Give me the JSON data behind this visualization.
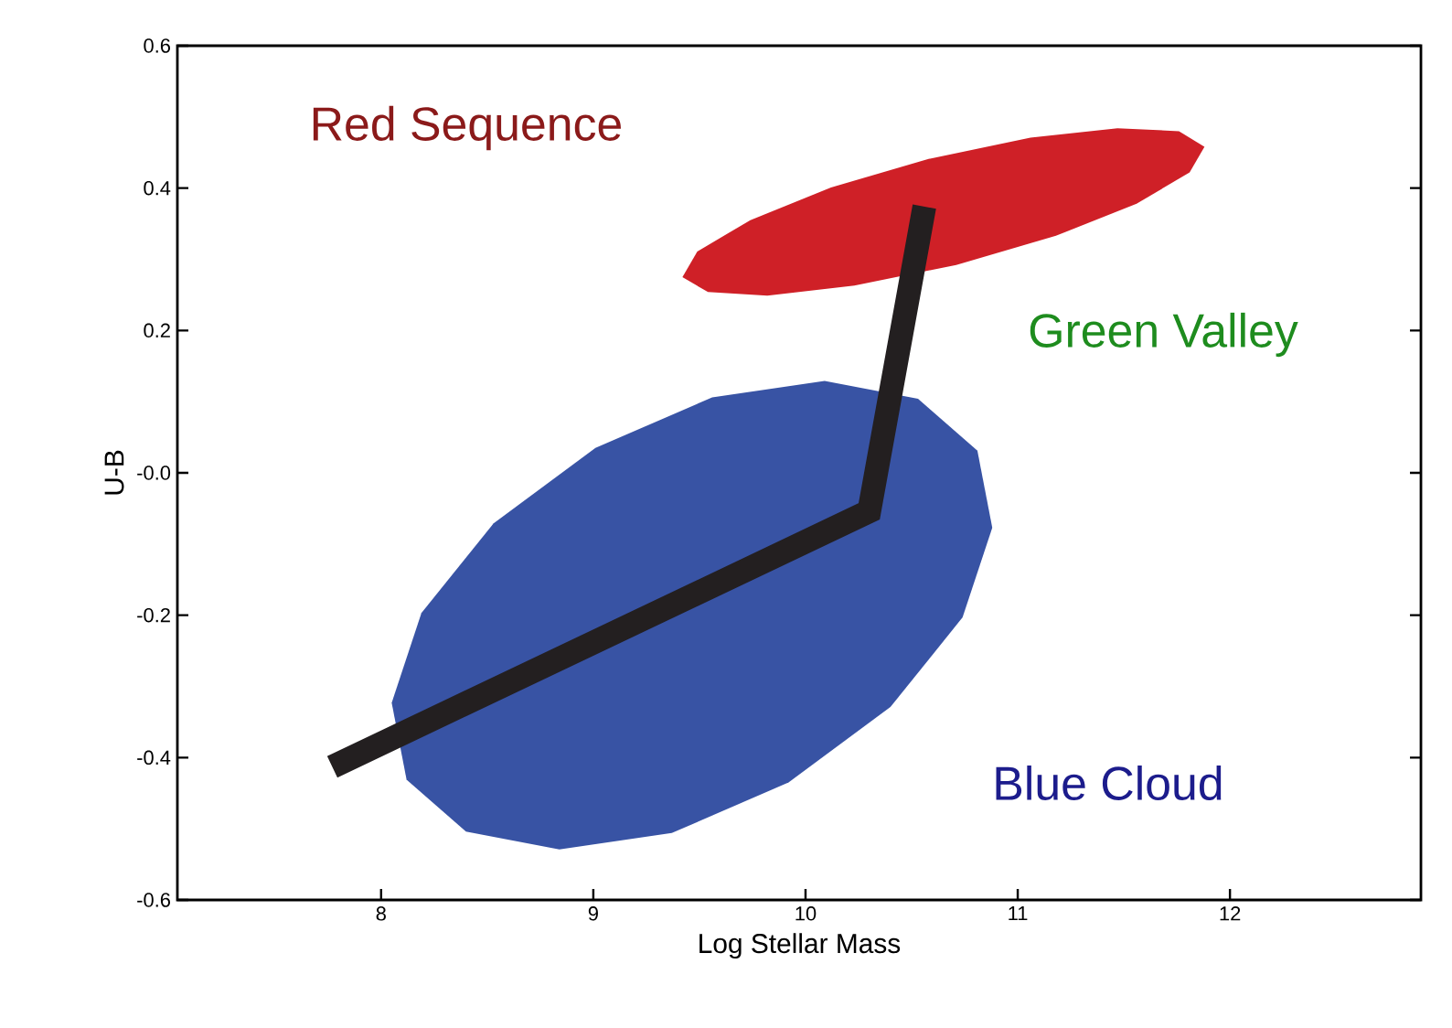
{
  "chart_data": {
    "type": "area",
    "xlabel": "Log Stellar Mass",
    "ylabel": "U-B",
    "xlim": [
      7.04,
      12.9
    ],
    "ylim": [
      -0.6,
      0.6
    ],
    "xticks": [
      8,
      9,
      10,
      11,
      12
    ],
    "yticks": [
      {
        "value": -0.6,
        "label": "-0.6"
      },
      {
        "value": -0.4,
        "label": "-0.4"
      },
      {
        "value": -0.2,
        "label": "-0.2"
      },
      {
        "value": 0,
        "label": "-0.0"
      },
      {
        "value": 0.2,
        "label": "0.2"
      },
      {
        "value": 0.4,
        "label": "0.4"
      },
      {
        "value": 0.6,
        "label": "0.6"
      }
    ],
    "series": [
      {
        "color": "#3853a4",
        "x": [
          10.81,
          10.88,
          10.74,
          10.4,
          9.92,
          9.37,
          8.84,
          8.4,
          8.12,
          8.05,
          8.19,
          8.53,
          9.01,
          9.56,
          10.09,
          10.53
        ],
        "values": [
          0.031,
          -0.077,
          -0.203,
          -0.329,
          -0.435,
          -0.506,
          -0.529,
          -0.504,
          -0.431,
          -0.323,
          -0.197,
          -0.071,
          0.035,
          0.106,
          0.129,
          0.104
        ]
      },
      {
        "color": "#cf2027",
        "x": [
          11.88,
          11.81,
          11.56,
          11.18,
          10.71,
          10.23,
          9.82,
          9.54,
          9.42,
          9.49,
          9.74,
          10.12,
          10.58,
          11.06,
          11.47,
          11.76
        ],
        "values": [
          0.458,
          0.422,
          0.378,
          0.333,
          0.292,
          0.263,
          0.249,
          0.254,
          0.275,
          0.311,
          0.355,
          0.401,
          0.441,
          0.471,
          0.484,
          0.48
        ]
      },
      {
        "type": "line",
        "color": "#231f20",
        "x": [
          7.77,
          10.3,
          10.56
        ],
        "values": [
          -0.413,
          -0.054,
          0.374
        ]
      }
    ],
    "annotations": [
      "Red Sequence",
      "Green Valley",
      "Blue Cloud"
    ]
  }
}
